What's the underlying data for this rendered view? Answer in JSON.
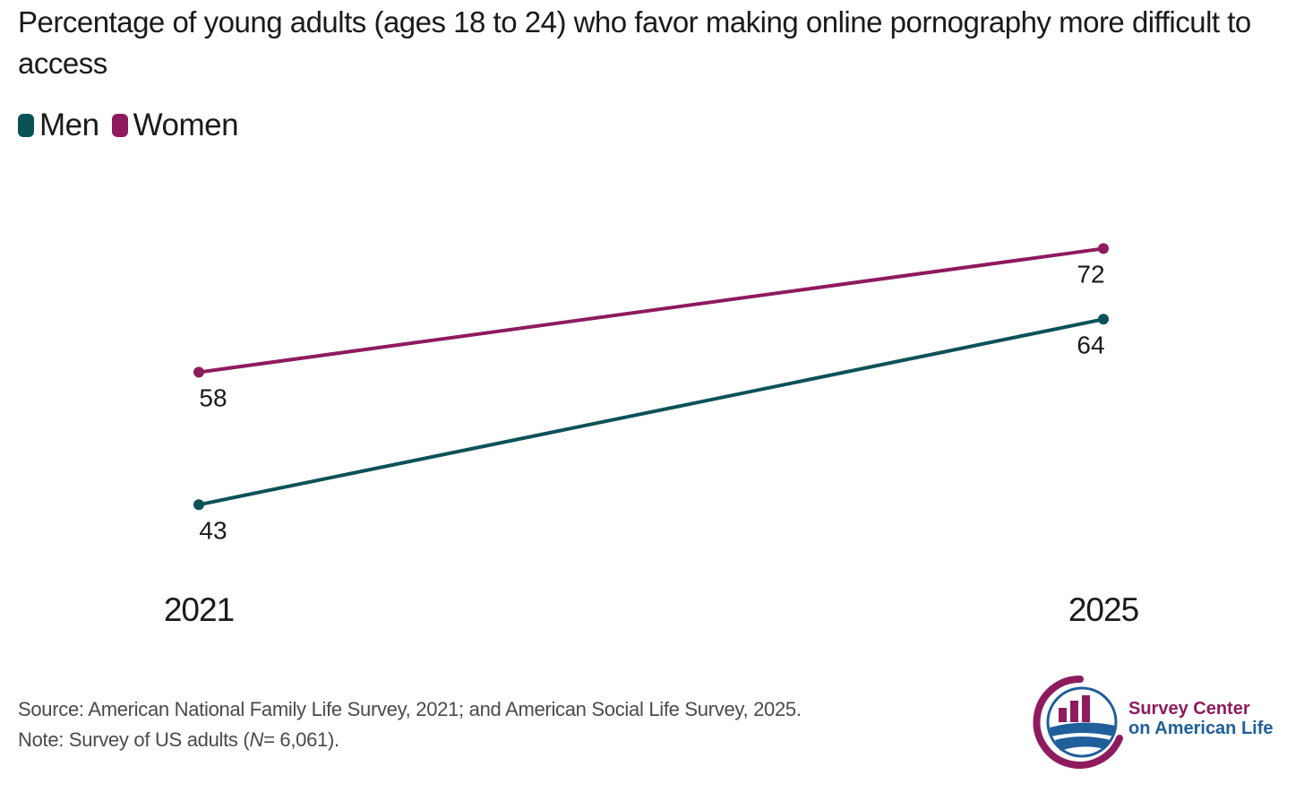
{
  "chart_data": {
    "type": "line",
    "title": "Percentage of young adults (ages 18 to 24) who favor making online pornography more difficult to access",
    "x": [
      "2021",
      "2025"
    ],
    "series": [
      {
        "name": "Men",
        "values": [
          43,
          64
        ],
        "color": "#0b5257"
      },
      {
        "name": "Women",
        "values": [
          58,
          72
        ],
        "color": "#8e1b5e"
      }
    ],
    "data_labels": {
      "Men": [
        "43",
        "64"
      ],
      "Women": [
        "58",
        "72"
      ]
    },
    "ylim": [
      20,
      90
    ],
    "grid": false,
    "legend": "top-left"
  },
  "footer": {
    "source": "Source: American National Family Life Survey, 2021; and American Social Life Survey, 2025.",
    "note_prefix": "Note: Survey of US adults (",
    "note_n": "N",
    "note_suffix": "= 6,061)."
  },
  "logo": {
    "line1": "Survey Center",
    "line2": "on American Life",
    "color_purple": "#8e1b5e",
    "color_blue": "#1f5f9a"
  }
}
